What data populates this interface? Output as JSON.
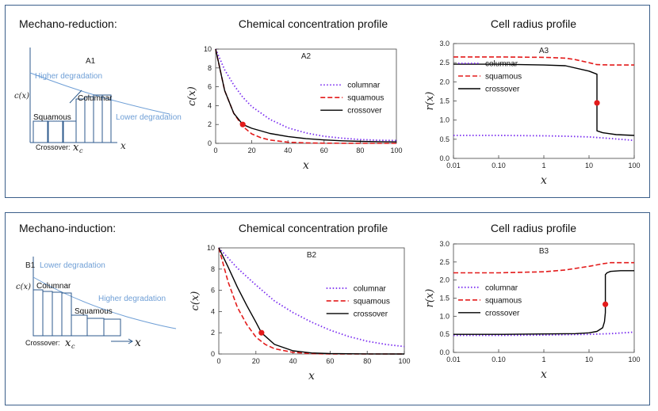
{
  "panelA": {
    "heading": "Mechano-reduction:",
    "titles": {
      "conc": "Chemical concentration profile",
      "radius": "Cell radius profile"
    },
    "schematic": {
      "panel_label": "A1",
      "ylabel": "c(x)",
      "xlabel": "x",
      "curve_top_label": "Higher degradation",
      "curve_bottom_label": "Lower degradation",
      "left_cells": "Squamous",
      "right_cells": "Columnar",
      "crossover": "Crossover:",
      "crossover_symbol": "x",
      "crossover_sub": "c"
    }
  },
  "panelB": {
    "heading": "Mechano-induction:",
    "titles": {
      "conc": "Chemical concentration profile",
      "radius": "Cell radius profile"
    },
    "schematic": {
      "panel_label": "B1",
      "ylabel": "c(x)",
      "xlabel": "x",
      "curve_top_label": "Lower degradation",
      "curve_bottom_label": "Higher degradation",
      "left_cells": "Columnar",
      "right_cells": "Squamous",
      "crossover": "Crossover:",
      "crossover_symbol": "x",
      "crossover_sub": "c"
    }
  },
  "colors": {
    "columnar": "#7b2ff0",
    "squamous": "#e31b1b",
    "crossover": "#000000",
    "marker": "#e31b1b",
    "schematic": "#2d5a8c",
    "curve": "#6f9fd6",
    "frame": "#3b5f8a"
  },
  "chart_data": [
    {
      "id": "A2",
      "type": "line",
      "scale": "linear",
      "title": "A2",
      "xlabel": "x",
      "ylabel": "c(x)",
      "xlim": [
        0,
        100
      ],
      "ylim": [
        0,
        10
      ],
      "xticks": [
        0,
        20,
        40,
        60,
        80,
        100
      ],
      "yticks": [
        0,
        2,
        4,
        6,
        8,
        10
      ],
      "legend_position": "center-right",
      "series": [
        {
          "name": "columnar",
          "style": "dotted",
          "x": [
            0,
            5,
            10,
            15,
            20,
            30,
            40,
            50,
            60,
            70,
            80,
            90,
            100
          ],
          "y": [
            10,
            7.8,
            6.2,
            4.9,
            3.9,
            2.55,
            1.65,
            1.1,
            0.75,
            0.55,
            0.4,
            0.33,
            0.3
          ]
        },
        {
          "name": "squamous",
          "style": "dashed",
          "x": [
            0,
            5,
            10,
            15,
            20,
            25,
            30,
            40,
            50,
            60,
            80,
            100
          ],
          "y": [
            10,
            5.6,
            3.2,
            1.8,
            1.0,
            0.6,
            0.35,
            0.12,
            0.05,
            0.02,
            0,
            0
          ]
        },
        {
          "name": "crossover",
          "style": "solid",
          "x": [
            0,
            5,
            10,
            15,
            20,
            30,
            40,
            50,
            60,
            70,
            80,
            90,
            100
          ],
          "y": [
            10,
            5.6,
            3.2,
            2.0,
            1.6,
            1.05,
            0.72,
            0.5,
            0.36,
            0.27,
            0.21,
            0.18,
            0.15
          ]
        }
      ],
      "marker": {
        "x": 15,
        "y": 2.0
      }
    },
    {
      "id": "A3",
      "type": "line",
      "scale": "log-x",
      "title": "A3",
      "xlabel": "x",
      "ylabel": "r(x)",
      "xlim": [
        0.01,
        100
      ],
      "ylim": [
        0,
        3.0
      ],
      "xticks": [
        0.01,
        0.1,
        1,
        10,
        100
      ],
      "xtick_labels": [
        "0.01",
        "0.10",
        "1",
        "10",
        "100"
      ],
      "yticks": [
        0,
        0.5,
        1.0,
        1.5,
        2.0,
        2.5,
        3.0
      ],
      "ytick_labels": [
        "0.0",
        "0.5",
        "1.0",
        "1.5",
        "2.0",
        "2.5",
        "3.0"
      ],
      "legend_position": "upper-left",
      "series": [
        {
          "name": "columnar",
          "style": "dotted",
          "x": [
            0.01,
            0.1,
            1,
            3,
            10,
            30,
            100
          ],
          "y": [
            0.6,
            0.6,
            0.59,
            0.58,
            0.56,
            0.52,
            0.47
          ]
        },
        {
          "name": "squamous",
          "style": "dashed",
          "x": [
            0.01,
            0.1,
            1,
            3,
            5,
            10,
            15,
            30,
            100
          ],
          "y": [
            2.65,
            2.65,
            2.64,
            2.62,
            2.58,
            2.5,
            2.45,
            2.44,
            2.44
          ]
        },
        {
          "name": "crossover",
          "style": "solid",
          "x": [
            0.01,
            0.1,
            1,
            3,
            10,
            15,
            15,
            20,
            40,
            100
          ],
          "y": [
            2.46,
            2.46,
            2.44,
            2.42,
            2.28,
            2.2,
            0.72,
            0.67,
            0.62,
            0.6
          ]
        }
      ],
      "marker": {
        "x": 15,
        "y": 1.45
      }
    },
    {
      "id": "B2",
      "type": "line",
      "scale": "linear",
      "title": "B2",
      "xlabel": "x",
      "ylabel": "c(x)",
      "xlim": [
        0,
        100
      ],
      "ylim": [
        0,
        10
      ],
      "xticks": [
        0,
        20,
        40,
        60,
        80,
        100
      ],
      "yticks": [
        0,
        2,
        4,
        6,
        8,
        10
      ],
      "legend_position": "center-right",
      "series": [
        {
          "name": "columnar",
          "style": "dotted",
          "x": [
            0,
            10,
            20,
            30,
            40,
            50,
            60,
            70,
            80,
            90,
            100
          ],
          "y": [
            10,
            8.1,
            6.5,
            5.0,
            3.9,
            3.0,
            2.25,
            1.65,
            1.2,
            0.9,
            0.7
          ]
        },
        {
          "name": "squamous",
          "style": "dashed",
          "x": [
            0,
            5,
            10,
            15,
            20,
            25,
            30,
            40,
            50,
            60,
            100
          ],
          "y": [
            10,
            6.8,
            4.4,
            2.8,
            1.6,
            0.9,
            0.5,
            0.15,
            0.04,
            0,
            0
          ]
        },
        {
          "name": "crossover",
          "style": "solid",
          "x": [
            0,
            5,
            10,
            15,
            20,
            23,
            30,
            40,
            50,
            60,
            80,
            100
          ],
          "y": [
            10,
            8.2,
            6.3,
            4.6,
            3.0,
            2.0,
            0.9,
            0.3,
            0.1,
            0.04,
            0.01,
            0
          ]
        }
      ],
      "marker": {
        "x": 23,
        "y": 2.0
      }
    },
    {
      "id": "B3",
      "type": "line",
      "scale": "log-x",
      "title": "B3",
      "xlabel": "x",
      "ylabel": "r(x)",
      "xlim": [
        0.01,
        100
      ],
      "ylim": [
        0,
        3.0
      ],
      "xticks": [
        0.01,
        0.1,
        1,
        10,
        100
      ],
      "xtick_labels": [
        "0.01",
        "0.10",
        "1",
        "10",
        "100"
      ],
      "yticks": [
        0,
        0.5,
        1.0,
        1.5,
        2.0,
        2.5,
        3.0
      ],
      "ytick_labels": [
        "0.0",
        "0.5",
        "1.0",
        "1.5",
        "2.0",
        "2.5",
        "3.0"
      ],
      "legend_position": "center-left",
      "series": [
        {
          "name": "columnar",
          "style": "dotted",
          "x": [
            0.01,
            0.1,
            1,
            3,
            10,
            30,
            100
          ],
          "y": [
            0.47,
            0.47,
            0.48,
            0.49,
            0.5,
            0.52,
            0.56
          ]
        },
        {
          "name": "squamous",
          "style": "dashed",
          "x": [
            0.01,
            0.1,
            1,
            3,
            10,
            20,
            30,
            100
          ],
          "y": [
            2.2,
            2.2,
            2.23,
            2.28,
            2.38,
            2.45,
            2.48,
            2.48
          ]
        },
        {
          "name": "crossover",
          "style": "solid",
          "x": [
            0.01,
            0.1,
            1,
            5,
            10,
            15,
            20,
            22,
            23,
            23,
            25,
            30,
            50,
            100
          ],
          "y": [
            0.5,
            0.5,
            0.51,
            0.52,
            0.54,
            0.58,
            0.68,
            0.85,
            1.1,
            2.15,
            2.2,
            2.24,
            2.26,
            2.26
          ]
        }
      ],
      "marker": {
        "x": 23,
        "y": 1.33
      }
    }
  ]
}
